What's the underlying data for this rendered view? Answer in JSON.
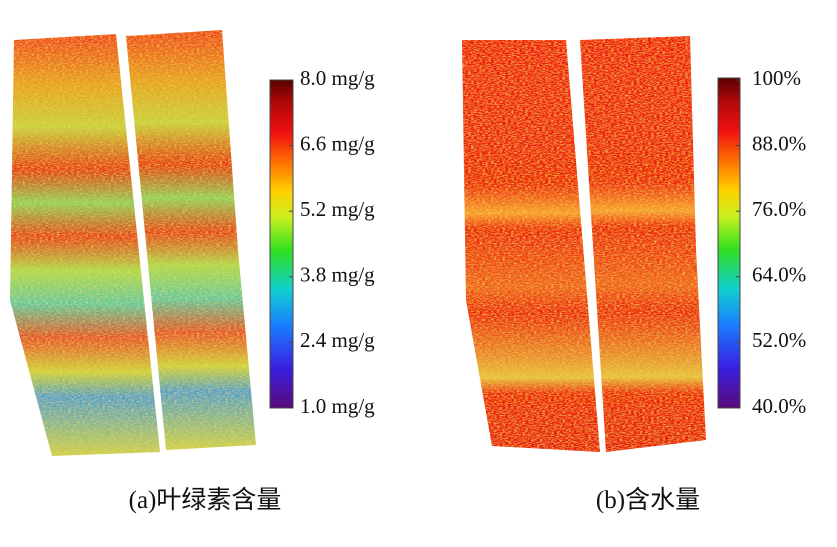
{
  "panels": [
    {
      "caption": "(a)叶绿素含量",
      "colorbar": {
        "ticks": [
          "8.0 mg/g",
          "6.6 mg/g",
          "5.2 mg/g",
          "3.8 mg/g",
          "2.4 mg/g",
          "1.0 mg/g"
        ]
      }
    },
    {
      "caption": "(b)含水量",
      "colorbar": {
        "ticks": [
          "100%",
          "88.0%",
          "76.0%",
          "64.0%",
          "52.0%",
          "40.0%"
        ]
      }
    }
  ]
}
